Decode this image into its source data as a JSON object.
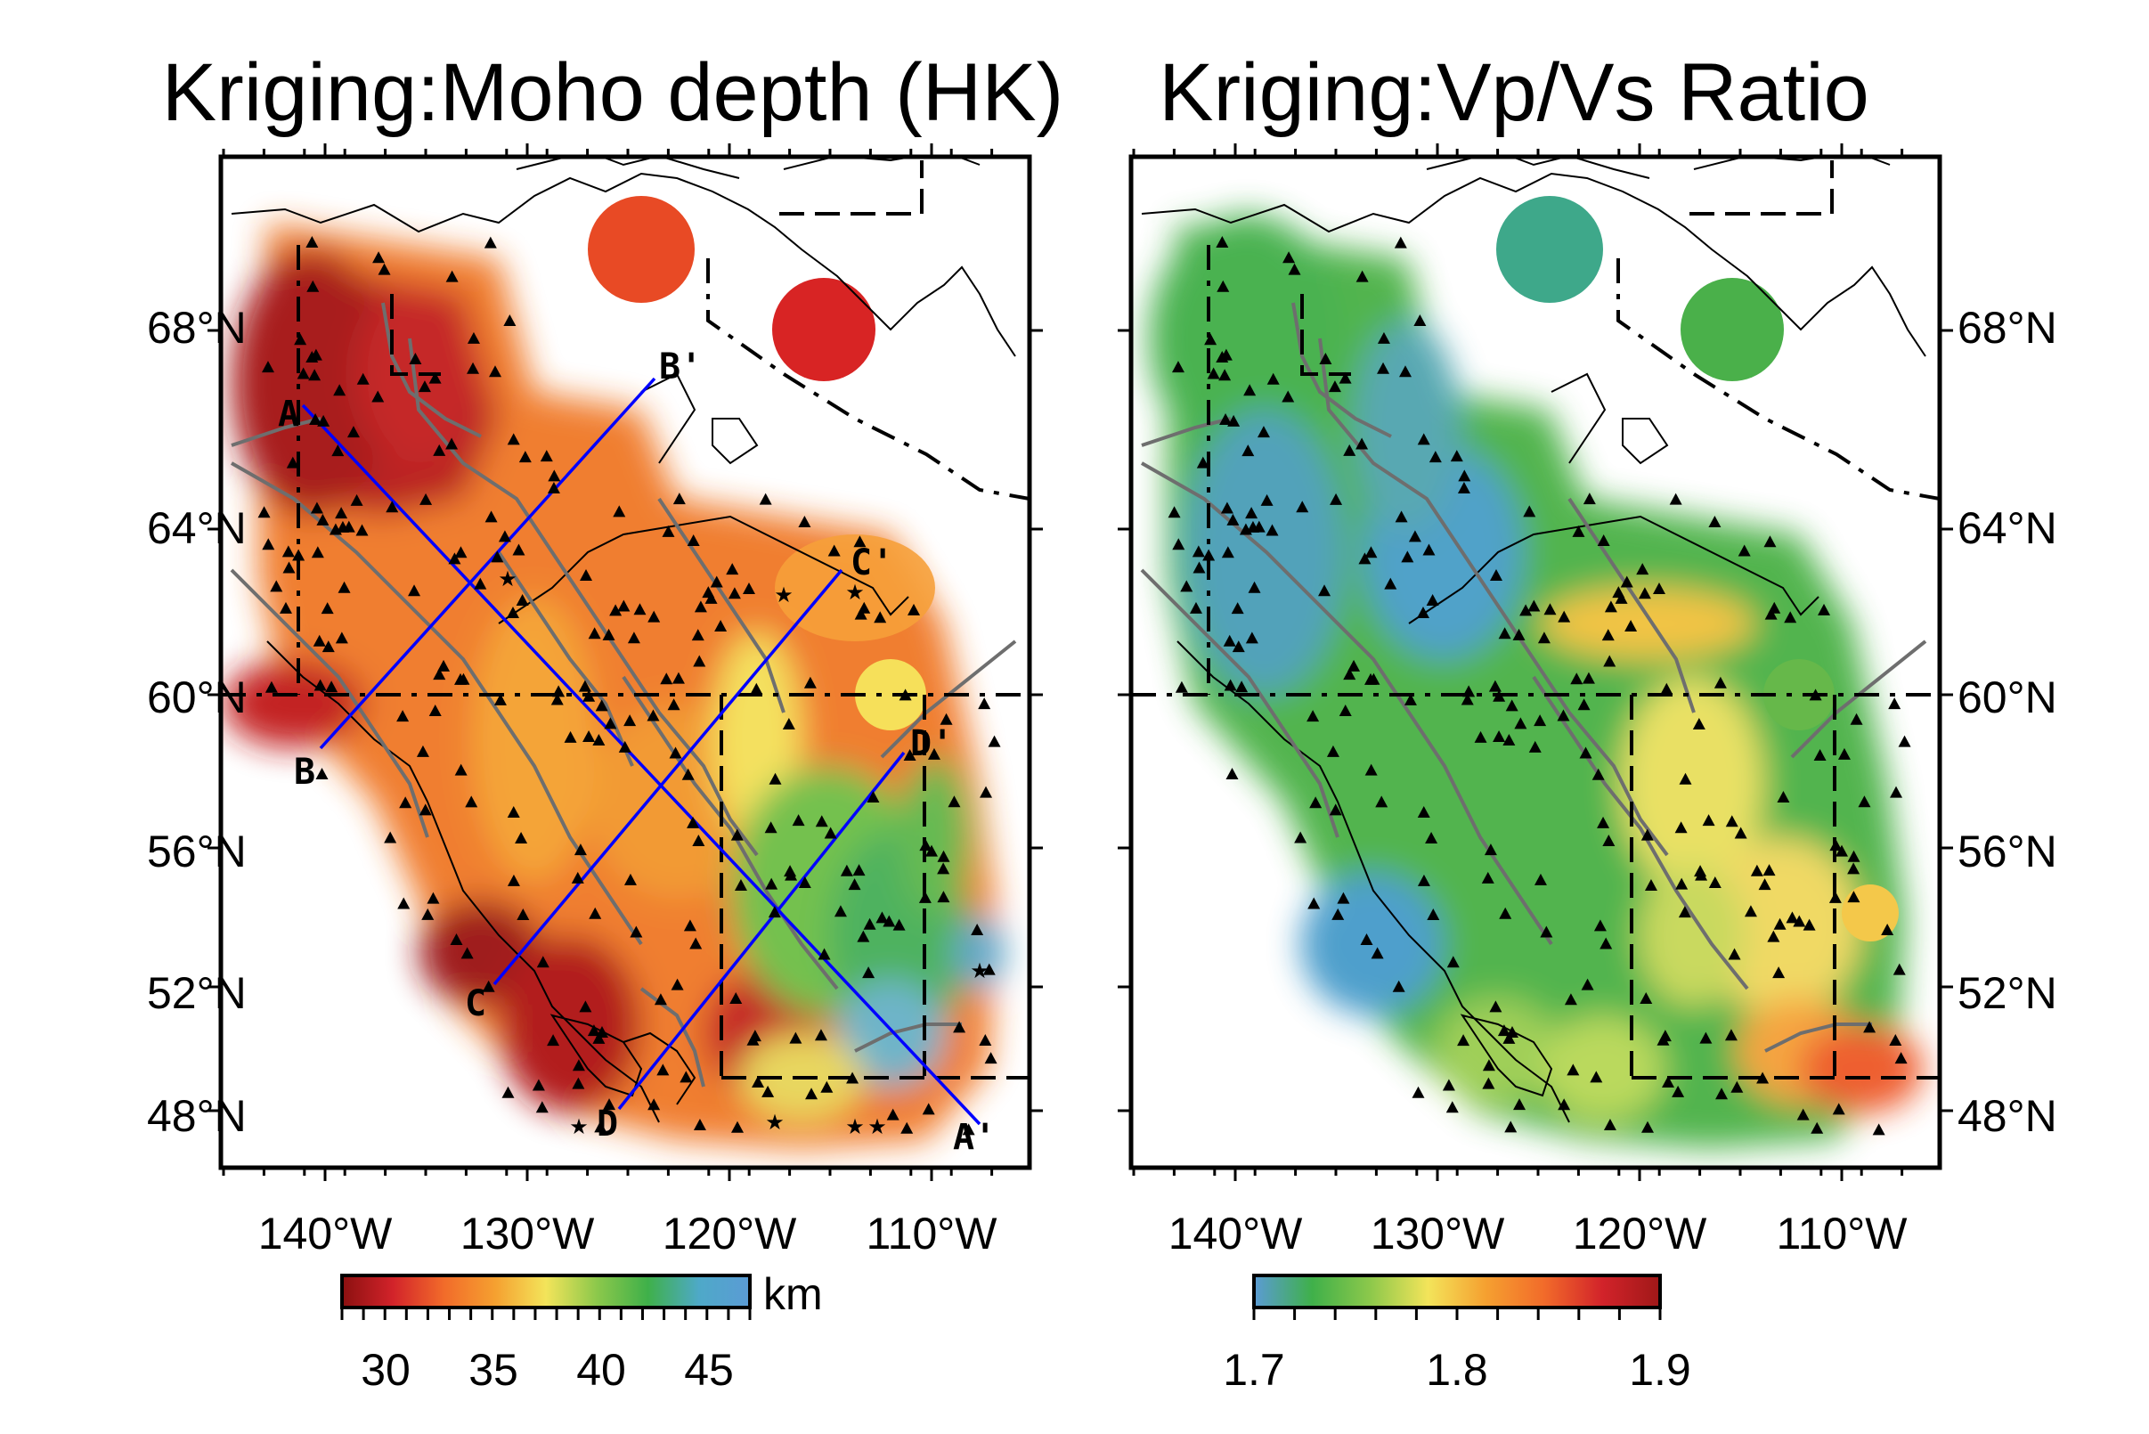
{
  "maps": [
    {
      "title": "Kriging:Moho depth (HK)",
      "x_ticks": [
        "140°W",
        "130°W",
        "120°W",
        "110°W"
      ],
      "y_ticks": [
        "68°N",
        "64°N",
        "60°N",
        "56°N",
        "52°N",
        "48°N"
      ],
      "y_ticks_side": "left",
      "colorbar": {
        "ticks": [
          "30",
          "35",
          "40",
          "45"
        ],
        "unit": "km",
        "range": [
          28,
          47
        ],
        "colors": [
          "#8b1010",
          "#d2232a",
          "#f26b2a",
          "#f5a030",
          "#f3e45a",
          "#8cc84b",
          "#3fb04a",
          "#4ea9c8",
          "#5b9bd5"
        ]
      },
      "profiles": [
        {
          "label": "A",
          "end_label": "A'"
        },
        {
          "label": "B",
          "end_label": "B'"
        },
        {
          "label": "C",
          "end_label": "C'"
        },
        {
          "label": "D",
          "end_label": "D'"
        }
      ]
    },
    {
      "title": "Kriging:Vp/Vs Ratio",
      "x_ticks": [
        "140°W",
        "130°W",
        "120°W",
        "110°W"
      ],
      "y_ticks": [
        "68°N",
        "64°N",
        "60°N",
        "56°N",
        "52°N",
        "48°N"
      ],
      "y_ticks_side": "right",
      "colorbar": {
        "ticks": [
          "1.7",
          "1.8",
          "1.9"
        ],
        "unit": "",
        "range": [
          1.7,
          1.9
        ],
        "colors": [
          "#5b9bd5",
          "#3fb04a",
          "#8cc84b",
          "#f3e45a",
          "#f5a030",
          "#f26b2a",
          "#d2232a",
          "#a01818"
        ]
      }
    }
  ],
  "colors": {
    "profile_line": "#0000ff",
    "fault_line": "#6e6e6e",
    "coast_line": "#000000"
  },
  "icons": {
    "station": "triangle-icon",
    "event": "star-icon"
  }
}
